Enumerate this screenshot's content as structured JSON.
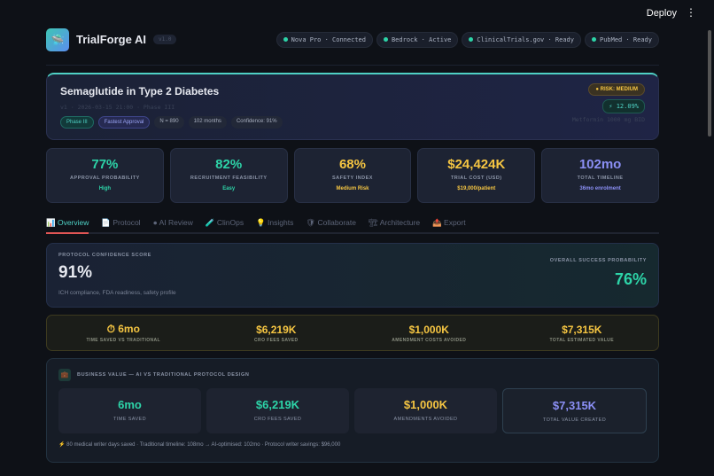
{
  "topbar": {
    "deploy": "Deploy",
    "menu": "⋮"
  },
  "header": {
    "brand": "TrialForge AI",
    "version": "v1.0",
    "status": [
      "Nova Pro · Connected",
      "Bedrock · Active",
      "ClinicalTrials.gov · Ready",
      "PubMed · Ready"
    ]
  },
  "hero": {
    "title": "Semaglutide in Type 2 Diabetes",
    "meta": "v1 · 2026-03-15 21:00 · Phase III",
    "tags": [
      "Phase III",
      "Fastest Approval",
      "N = 890",
      "102 months",
      "Confidence: 91%"
    ],
    "risk": "RISK: MEDIUM",
    "effect": "⚡ 12.09%",
    "comparator": "Metformin 1000 mg BID"
  },
  "kpis": [
    {
      "value": "77%",
      "label": "APPROVAL PROBABILITY",
      "sub": "High",
      "color": "#2dd4a8"
    },
    {
      "value": "82%",
      "label": "RECRUITMENT FEASIBILITY",
      "sub": "Easy",
      "color": "#2dd4a8"
    },
    {
      "value": "68%",
      "label": "SAFETY INDEX",
      "sub": "Medium Risk",
      "color": "#f5c542"
    },
    {
      "value": "$24,424K",
      "label": "TRIAL COST (USD)",
      "sub": "$19,000/patient",
      "color": "#f5c542"
    },
    {
      "value": "102mo",
      "label": "TOTAL TIMELINE",
      "sub": "36mo enrolment",
      "color": "#8b8ff5"
    }
  ],
  "tabs": [
    {
      "icon": "📊",
      "label": "Overview"
    },
    {
      "icon": "📄",
      "label": "Protocol"
    },
    {
      "icon": "●",
      "label": "AI Review"
    },
    {
      "icon": "🧪",
      "label": "ClinOps"
    },
    {
      "icon": "💡",
      "label": "Insights"
    },
    {
      "icon": "🛡",
      "label": "Collaborate"
    },
    {
      "icon": "🏗",
      "label": "Architecture"
    },
    {
      "icon": "📤",
      "label": "Export"
    }
  ],
  "confidence": {
    "label": "PROTOCOL CONFIDENCE SCORE",
    "value": "91%",
    "sub": "ICH compliance, FDA readiness, safety profile",
    "success_label": "OVERALL SUCCESS PROBABILITY",
    "success_value": "76%"
  },
  "savings": [
    {
      "value": "⏱ 6mo",
      "label": "TIME SAVED VS TRADITIONAL"
    },
    {
      "value": "$6,219K",
      "label": "CRO FEES SAVED"
    },
    {
      "value": "$1,000K",
      "label": "AMENDMENT COSTS AVOIDED"
    },
    {
      "value": "$7,315K",
      "label": "TOTAL ESTIMATED VALUE"
    }
  ],
  "business": {
    "icon": "💼",
    "title": "BUSINESS VALUE — AI VS TRADITIONAL PROTOCOL DESIGN",
    "cards": [
      {
        "value": "6mo",
        "label": "TIME SAVED",
        "color": "#2dd4a8"
      },
      {
        "value": "$6,219K",
        "label": "CRO FEES SAVED",
        "color": "#2dd4a8"
      },
      {
        "value": "$1,000K",
        "label": "AMENDMENTS AVOIDED",
        "color": "#f5c542"
      },
      {
        "value": "$7,315K",
        "label": "TOTAL VALUE CREATED",
        "color": "#8b8ff5"
      }
    ],
    "footnote": "⚡ 80 medical writer days saved · Traditional timeline: 108mo → AI-optimised: 102mo · Protocol writer savings: $96,000"
  }
}
